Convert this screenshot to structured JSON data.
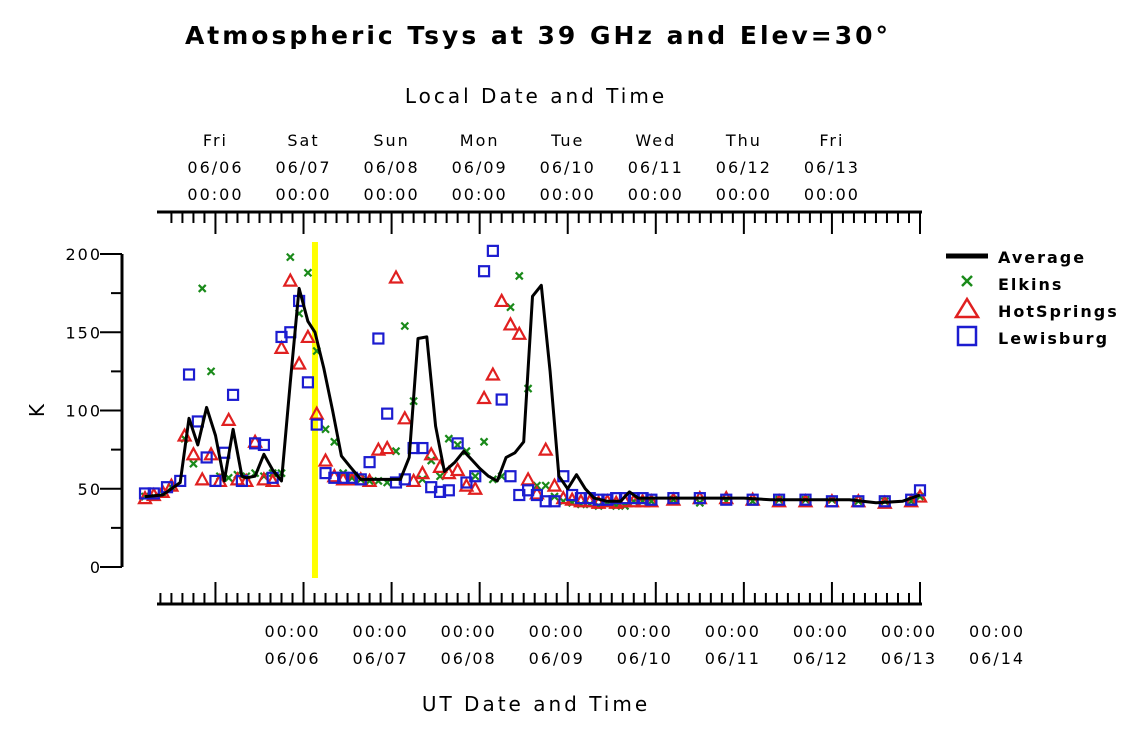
{
  "chart_data": {
    "type": "line",
    "title": "Atmospheric Tsys at 39 GHz and Elev=30°",
    "top_axis_label": "Local Date and Time",
    "xlabel": "UT Date and Time",
    "ylabel": "K",
    "ylim": [
      0,
      200
    ],
    "y_ticks": [
      "0",
      "50",
      "100",
      "150",
      "200"
    ],
    "x_range_days": [
      "06/05 05:00",
      "06/14 00:00"
    ],
    "bottom_ticks": [
      {
        "time": "00:00",
        "date": "06/06"
      },
      {
        "time": "00:00",
        "date": "06/07"
      },
      {
        "time": "00:00",
        "date": "06/08"
      },
      {
        "time": "00:00",
        "date": "06/09"
      },
      {
        "time": "00:00",
        "date": "06/10"
      },
      {
        "time": "00:00",
        "date": "06/11"
      },
      {
        "time": "00:00",
        "date": "06/12"
      },
      {
        "time": "00:00",
        "date": "06/13"
      },
      {
        "time": "00:00",
        "date": "06/14"
      }
    ],
    "top_ticks": [
      {
        "day": "Fri",
        "date": "06/06",
        "time": "00:00"
      },
      {
        "day": "Sat",
        "date": "06/07",
        "time": "00:00"
      },
      {
        "day": "Sun",
        "date": "06/08",
        "time": "00:00"
      },
      {
        "day": "Mon",
        "date": "06/09",
        "time": "00:00"
      },
      {
        "day": "Tue",
        "date": "06/10",
        "time": "00:00"
      },
      {
        "day": "Wed",
        "date": "06/11",
        "time": "00:00"
      },
      {
        "day": "Thu",
        "date": "06/12",
        "time": "00:00"
      },
      {
        "day": "Fri",
        "date": "06/13",
        "time": "00:00"
      }
    ],
    "highlight_x": 1.13,
    "colors": {
      "average": "#000000",
      "elkins": "#1a8a1a",
      "hotsprings": "#e02020",
      "lewisburg": "#1c1cd0",
      "highlight": "#ffff00"
    },
    "legend": [
      "Average",
      "Elkins",
      "HotSprings",
      "Lewisburg"
    ],
    "series": [
      {
        "name": "Average",
        "marker": "line",
        "x": [
          -0.8,
          -0.6,
          -0.5,
          -0.4,
          -0.3,
          -0.2,
          -0.1,
          0.0,
          0.1,
          0.2,
          0.3,
          0.35,
          0.45,
          0.55,
          0.65,
          0.75,
          0.85,
          0.95,
          1.05,
          1.13,
          1.23,
          1.33,
          1.43,
          1.53,
          1.65,
          1.78,
          1.9,
          2.0,
          2.1,
          2.2,
          2.3,
          2.4,
          2.5,
          2.6,
          2.72,
          2.82,
          2.92,
          3.0,
          3.1,
          3.2,
          3.3,
          3.4,
          3.5,
          3.6,
          3.7,
          3.8,
          3.9,
          4.0,
          4.1,
          4.2,
          4.3,
          4.45,
          4.6,
          4.7,
          4.8,
          4.9,
          5.0,
          5.1,
          5.25,
          5.4,
          5.55,
          5.7,
          5.85,
          6.0,
          6.3,
          6.6,
          6.9,
          7.2,
          7.5,
          7.8,
          8.0
        ],
        "y": [
          45,
          46,
          50,
          54,
          95,
          78,
          102,
          84,
          55,
          88,
          58,
          57,
          58,
          72,
          62,
          55,
          118,
          178,
          157,
          150,
          127,
          100,
          71,
          64,
          56,
          56,
          56,
          56,
          56,
          70,
          146,
          147,
          90,
          61,
          67,
          74,
          68,
          63,
          58,
          55,
          70,
          73,
          80,
          173,
          180,
          125,
          58,
          50,
          59,
          50,
          44,
          42,
          42,
          48,
          44,
          44,
          44,
          44,
          44,
          44,
          44,
          44,
          44,
          44,
          43,
          43,
          43,
          43,
          41,
          42,
          46
        ]
      },
      {
        "name": "Elkins",
        "marker": "x",
        "x": [
          -0.8,
          -0.7,
          -0.6,
          -0.5,
          -0.35,
          -0.25,
          -0.15,
          -0.05,
          0.05,
          0.15,
          0.25,
          0.35,
          0.45,
          0.55,
          0.65,
          0.75,
          0.85,
          0.95,
          1.05,
          1.15,
          1.25,
          1.35,
          1.45,
          1.55,
          1.65,
          1.75,
          1.85,
          1.95,
          2.05,
          2.15,
          2.25,
          2.35,
          2.45,
          2.55,
          2.65,
          2.75,
          2.85,
          2.95,
          3.05,
          3.15,
          3.25,
          3.35,
          3.45,
          3.55,
          3.65,
          3.75,
          3.85,
          3.95,
          4.05,
          4.15,
          4.25,
          4.35,
          4.45,
          4.55,
          4.65,
          4.75,
          4.85,
          4.95,
          5.2,
          5.5,
          5.8,
          6.1,
          6.4,
          6.7,
          7.0,
          7.3,
          7.6,
          7.9,
          8.0
        ],
        "y": [
          45,
          45,
          47,
          51,
          82,
          66,
          178,
          125,
          58,
          57,
          59,
          58,
          60,
          58,
          60,
          60,
          198,
          162,
          188,
          138,
          88,
          80,
          60,
          57,
          56,
          55,
          55,
          54,
          74,
          154,
          106,
          56,
          68,
          58,
          82,
          78,
          74,
          58,
          80,
          56,
          58,
          166,
          186,
          114,
          52,
          52,
          45,
          42,
          41,
          40,
          40,
          39,
          40,
          39,
          39,
          42,
          42,
          42,
          43,
          41,
          42,
          42,
          43,
          43,
          43,
          42,
          42,
          42,
          45
        ]
      },
      {
        "name": "HotSprings",
        "marker": "triangle",
        "x": [
          -0.8,
          -0.7,
          -0.6,
          -0.5,
          -0.35,
          -0.25,
          -0.15,
          -0.05,
          0.05,
          0.15,
          0.25,
          0.35,
          0.45,
          0.55,
          0.65,
          0.75,
          0.85,
          0.95,
          1.05,
          1.15,
          1.25,
          1.35,
          1.45,
          1.55,
          1.65,
          1.75,
          1.85,
          1.95,
          2.05,
          2.15,
          2.25,
          2.35,
          2.45,
          2.55,
          2.65,
          2.75,
          2.85,
          2.95,
          3.05,
          3.15,
          3.25,
          3.35,
          3.45,
          3.55,
          3.65,
          3.75,
          3.85,
          3.95,
          4.05,
          4.15,
          4.25,
          4.35,
          4.45,
          4.55,
          4.65,
          4.75,
          4.85,
          4.95,
          5.2,
          5.5,
          5.8,
          6.1,
          6.4,
          6.7,
          7.0,
          7.3,
          7.6,
          7.9,
          8.0
        ],
        "y": [
          44,
          46,
          48,
          52,
          84,
          72,
          56,
          72,
          55,
          94,
          56,
          55,
          80,
          56,
          55,
          140,
          183,
          130,
          147,
          98,
          68,
          58,
          56,
          56,
          56,
          55,
          75,
          76,
          185,
          95,
          55,
          60,
          72,
          64,
          60,
          62,
          52,
          50,
          108,
          123,
          170,
          155,
          149,
          56,
          47,
          75,
          52,
          44,
          43,
          42,
          42,
          41,
          42,
          41,
          42,
          42,
          42,
          42,
          43,
          44,
          44,
          43,
          42,
          42,
          42,
          42,
          41,
          42,
          45
        ]
      },
      {
        "name": "Lewisburg",
        "marker": "square",
        "x": [
          -0.8,
          -0.7,
          -0.55,
          -0.4,
          -0.3,
          -0.2,
          -0.1,
          0.0,
          0.1,
          0.2,
          0.3,
          0.45,
          0.55,
          0.65,
          0.75,
          0.85,
          0.95,
          1.05,
          1.15,
          1.25,
          1.35,
          1.45,
          1.55,
          1.65,
          1.75,
          1.85,
          1.95,
          2.05,
          2.15,
          2.25,
          2.35,
          2.45,
          2.55,
          2.65,
          2.75,
          2.85,
          2.95,
          3.05,
          3.15,
          3.25,
          3.35,
          3.45,
          3.55,
          3.65,
          3.75,
          3.85,
          3.95,
          4.05,
          4.15,
          4.25,
          4.35,
          4.45,
          4.55,
          4.65,
          4.75,
          4.85,
          4.95,
          5.2,
          5.5,
          5.8,
          6.1,
          6.4,
          6.7,
          7.0,
          7.3,
          7.6,
          7.9,
          8.0
        ],
        "y": [
          47,
          47,
          51,
          55,
          123,
          93,
          70,
          55,
          73,
          110,
          55,
          79,
          78,
          57,
          147,
          150,
          170,
          118,
          91,
          60,
          57,
          57,
          57,
          56,
          67,
          146,
          98,
          54,
          56,
          76,
          76,
          51,
          48,
          49,
          79,
          54,
          58,
          189,
          202,
          107,
          58,
          46,
          49,
          46,
          42,
          42,
          58,
          46,
          44,
          44,
          43,
          43,
          44,
          44,
          44,
          44,
          43,
          44,
          44,
          43,
          43,
          43,
          43,
          42,
          42,
          42,
          43,
          49
        ]
      }
    ]
  }
}
